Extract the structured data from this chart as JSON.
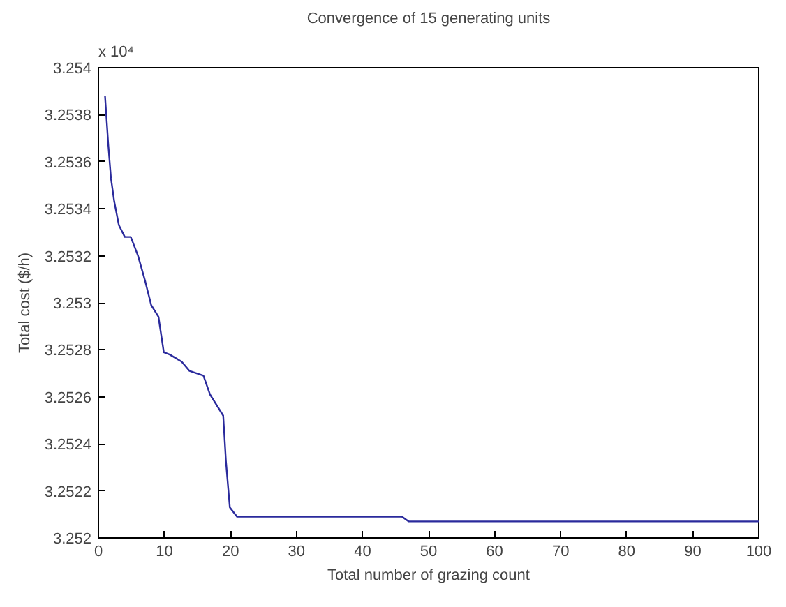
{
  "chart_data": {
    "type": "line",
    "title": "Convergence of 15 generating units",
    "xlabel": "Total number of grazing count",
    "ylabel": "Total cost ($/h)",
    "annotations": [
      "x 10⁴"
    ],
    "x": [
      1,
      1.5,
      1.9,
      2.4,
      3.1,
      4,
      4.9,
      6,
      7.1,
      8,
      9.1,
      9.9,
      10.8,
      12.6,
      13.8,
      15.9,
      16.9,
      18.9,
      19.3,
      19.9,
      21,
      46,
      47,
      100
    ],
    "series": [
      {
        "color": "#2a2a9c",
        "values": [
          3.25388,
          3.25367,
          3.25353,
          3.25343,
          3.25333,
          3.25328,
          3.25328,
          3.2532,
          3.25309,
          3.25299,
          3.25294,
          3.25279,
          3.25278,
          3.25275,
          3.25271,
          3.25269,
          3.25261,
          3.25252,
          3.25233,
          3.25213,
          3.25209,
          3.25209,
          3.25207,
          3.25207
        ]
      }
    ],
    "xlim": [
      0,
      100
    ],
    "xticks": [
      0,
      10,
      20,
      30,
      40,
      50,
      60,
      70,
      80,
      90,
      100
    ],
    "ylim": [
      3.252,
      3.254
    ],
    "yticks": [
      3.252,
      3.2522,
      3.2524,
      3.2526,
      3.2528,
      3.253,
      3.2532,
      3.2534,
      3.2536,
      3.2538,
      3.254
    ],
    "grid": false,
    "marker": "none",
    "line_style": "solid"
  }
}
